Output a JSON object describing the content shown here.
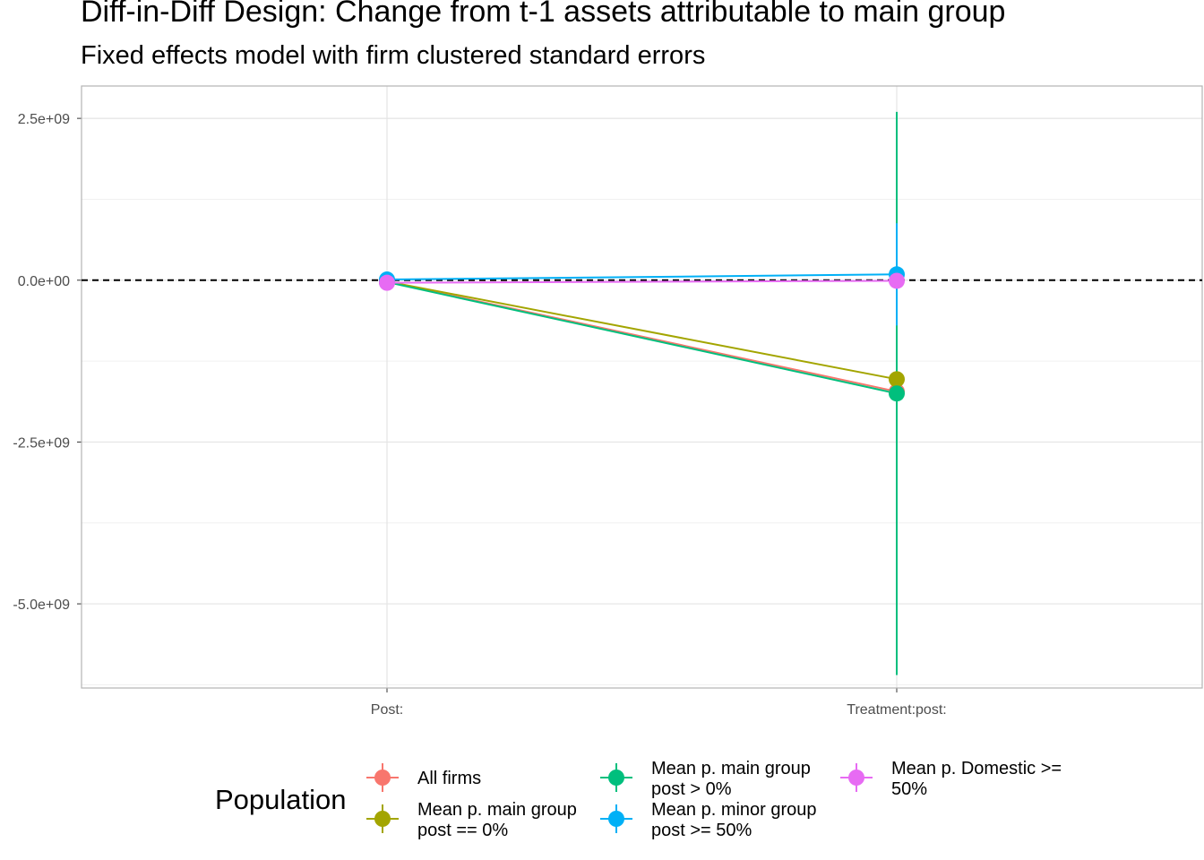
{
  "chart_data": {
    "type": "scatter",
    "title": "Diff-in-Diff Design: Change from t-1 assets attributable to main group",
    "subtitle": "Fixed effects model with firm clustered standard errors",
    "xlabel": "",
    "ylabel": "",
    "categories": [
      "Post:",
      "Treatment:post:"
    ],
    "ylim": [
      -6300000000.0,
      3000000000.0
    ],
    "y_ticks": [
      2500000000.0,
      0,
      -2500000000.0,
      -5000000000.0
    ],
    "y_tick_labels": [
      "2.5e+09",
      "0.0e+00",
      "-2.5e+09",
      "-5.0e+09"
    ],
    "reference_line": 0,
    "grid": true,
    "legend": {
      "title": "Population",
      "position": "bottom"
    },
    "series": [
      {
        "name": "All firms",
        "color": "#F8766D",
        "values": [
          -20000000.0,
          -1720000000.0
        ],
        "lower": [
          -40000000.0,
          -1740000000.0
        ],
        "upper": [
          0,
          -1700000000.0
        ]
      },
      {
        "name": "Mean p. main group\npost == 0%",
        "color": "#A3A500",
        "values": [
          -20000000.0,
          -1530000000.0
        ],
        "lower": [
          -40000000.0,
          -1550000000.0
        ],
        "upper": [
          0,
          -1510000000.0
        ]
      },
      {
        "name": "Mean p. main group\npost > 0%",
        "color": "#00BF7D",
        "values": [
          -30000000.0,
          -1750000000.0
        ],
        "lower": [
          -50000000.0,
          -6100000000.0
        ],
        "upper": [
          -10000000.0,
          2600000000.0
        ]
      },
      {
        "name": "Mean p. minor group\npost >= 50%",
        "color": "#00B0F6",
        "values": [
          10000000.0,
          90000000.0
        ],
        "lower": [
          -10000000.0,
          -700000000.0
        ],
        "upper": [
          30000000.0,
          880000000.0
        ]
      },
      {
        "name": "Mean p. Domestic >=\n50%",
        "color": "#E76BF3",
        "values": [
          -40000000.0,
          -10000000.0
        ],
        "lower": [
          -60000000.0,
          -30000000.0
        ],
        "upper": [
          -20000000.0,
          10000000.0
        ]
      }
    ]
  }
}
